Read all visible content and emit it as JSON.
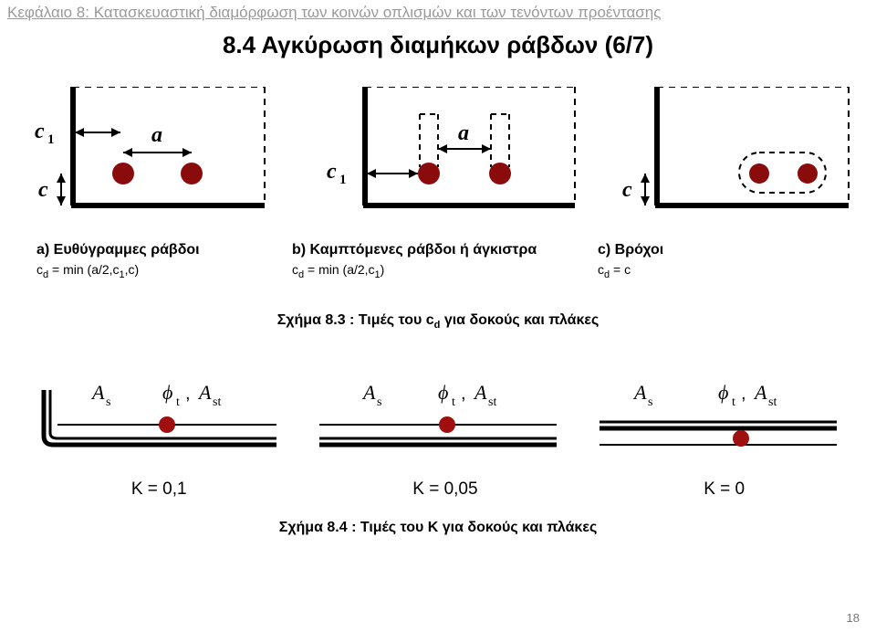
{
  "header": "Κεφάλαιο 8: Κατασκευαστική διαμόρφωση των κοινών οπλισμών και των τενόντων προέντασης",
  "title": "8.4 Αγκύρωση διαμήκων ράβδων (6/7)",
  "top_diagrams": {
    "a": {
      "head": "a) Ευθύγραμμες ράβδοι",
      "formula_html": "c<span class='sub'>d</span> = min (a/2,c<span class='sub'>1</span>,c)",
      "c1": "c",
      "c1_sub": "1",
      "a": "a",
      "c": "c",
      "bar_color": "#8a0b0b",
      "line_color": "#000000",
      "dash": "6,5"
    },
    "b": {
      "head": "b) Καμπτόμενες ράβδοι ή άγκιστρα",
      "formula_html": "c<span class='sub'>d</span> = min (a/2,c<span class='sub'>1</span>)",
      "c1": "c",
      "c1_sub": "1",
      "a": "a",
      "bar_color": "#8a0b0b"
    },
    "c": {
      "head": "c) Βρόχοι",
      "formula_html": "c<span class='sub'>d</span> = c",
      "c": "c",
      "bar_color": "#8a0b0b"
    }
  },
  "caption1_html": "Σχήμα 8.3 : Τιμές του c<span class='sub'>d</span> για δοκούς και πλάκες",
  "bottom_diagrams": {
    "as": "A",
    "as_sub": "s",
    "phi": "ϕ",
    "phi_sub": "t",
    "ast": "A",
    "ast_sub": "st",
    "k1": "K = 0,1",
    "k2": "K = 0,05",
    "k3": "K = 0",
    "bar_color": "#a00f0f"
  },
  "caption2": "Σχήμα 8.4 : Τιμές του K για δοκούς και πλάκες",
  "page_number": "18"
}
